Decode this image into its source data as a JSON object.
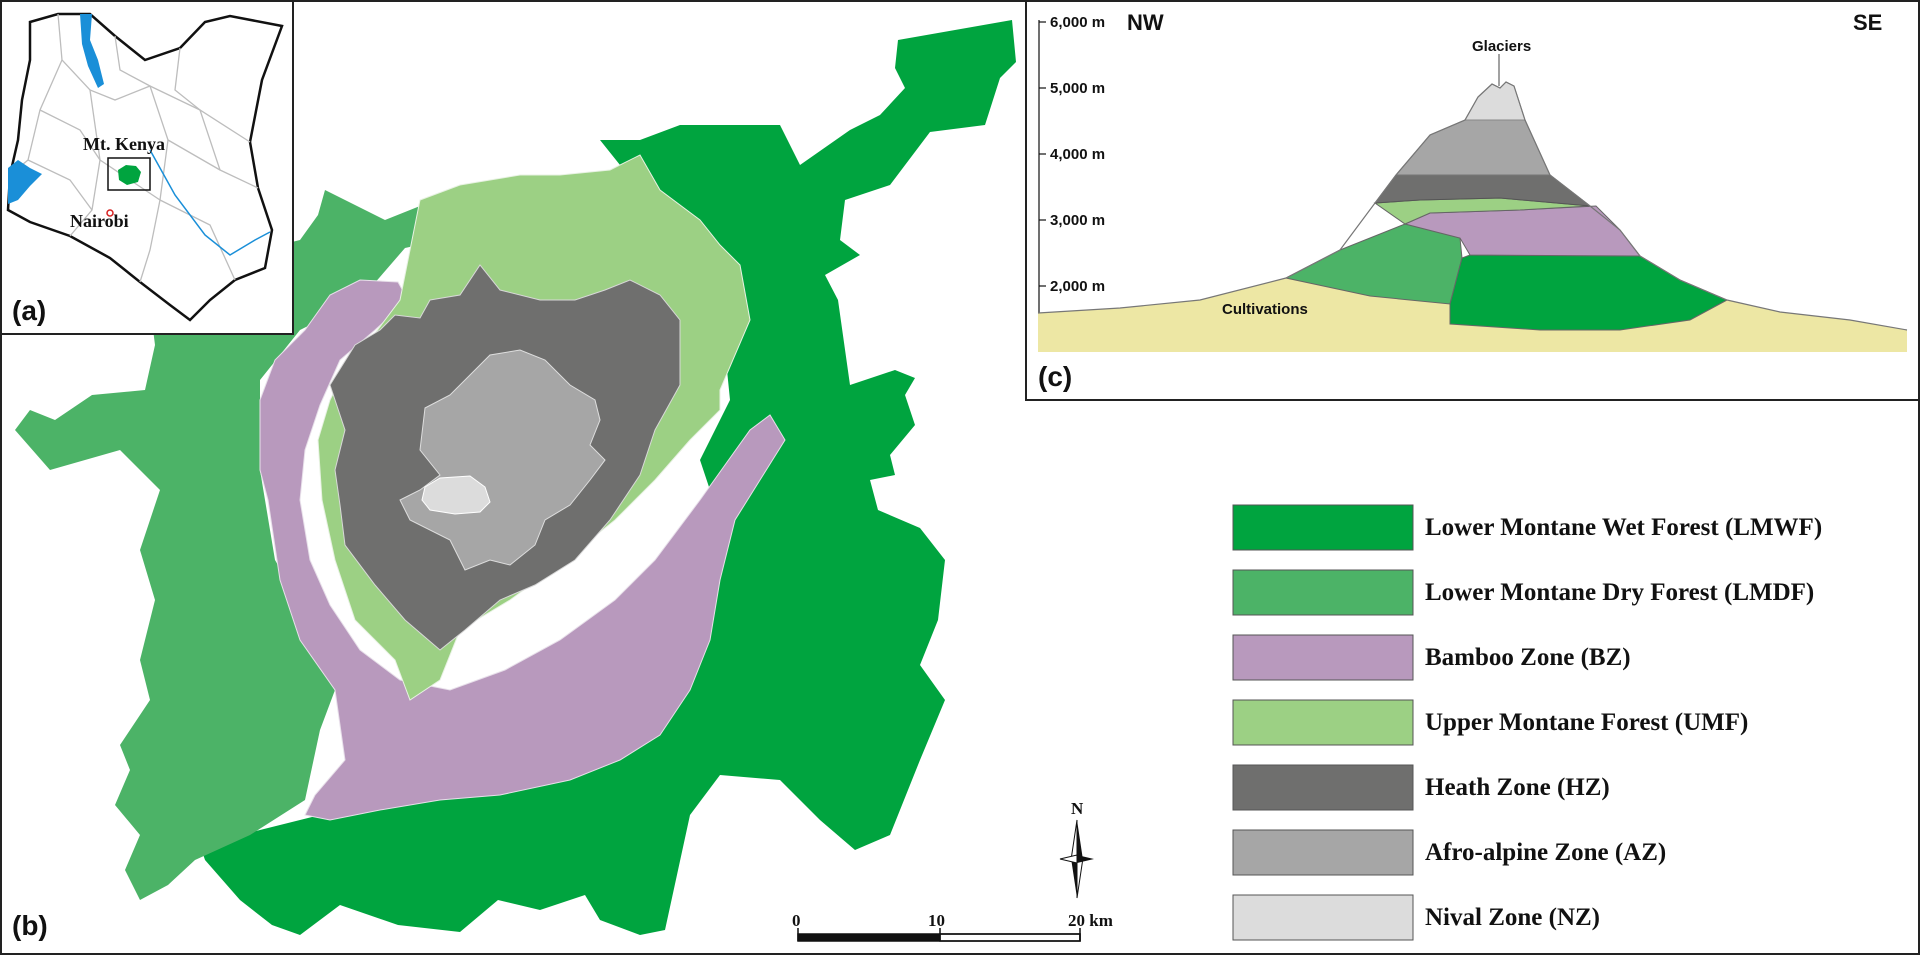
{
  "panel_labels": {
    "a": "(a)",
    "b": "(b)",
    "c": "(c)"
  },
  "inset": {
    "place_labels": [
      "Mt. Kenya",
      "Nairobi"
    ]
  },
  "profile": {
    "left_direction": "NW",
    "right_direction": "SE",
    "elevation_ticks": [
      "6,000 m",
      "5,000 m",
      "4,000 m",
      "3,000 m",
      "2,000 m"
    ],
    "labels": {
      "glaciers": "Glaciers",
      "cultivations": "Cultivations"
    }
  },
  "north_arrow": {
    "label": "N"
  },
  "scale_bar": {
    "ticks": [
      "0",
      "10",
      "20 km"
    ]
  },
  "legend": [
    {
      "label": "Lower Montane Wet Forest (LMWF)",
      "color": "#00a43f"
    },
    {
      "label": "Lower Montane Dry Forest (LMDF)",
      "color": "#4cb367"
    },
    {
      "label": "Bamboo Zone (BZ)",
      "color": "#b899bd"
    },
    {
      "label": "Upper Montane Forest (UMF)",
      "color": "#9cd084"
    },
    {
      "label": "Heath Zone (HZ)",
      "color": "#6f6f6e"
    },
    {
      "label": "Afro-alpine Zone (AZ)",
      "color": "#a6a6a6"
    },
    {
      "label": "Nival Zone (NZ)",
      "color": "#dcdcdc"
    }
  ],
  "other_colors": {
    "cultivations": "#ede7a4",
    "water": "#1a8fd8"
  }
}
